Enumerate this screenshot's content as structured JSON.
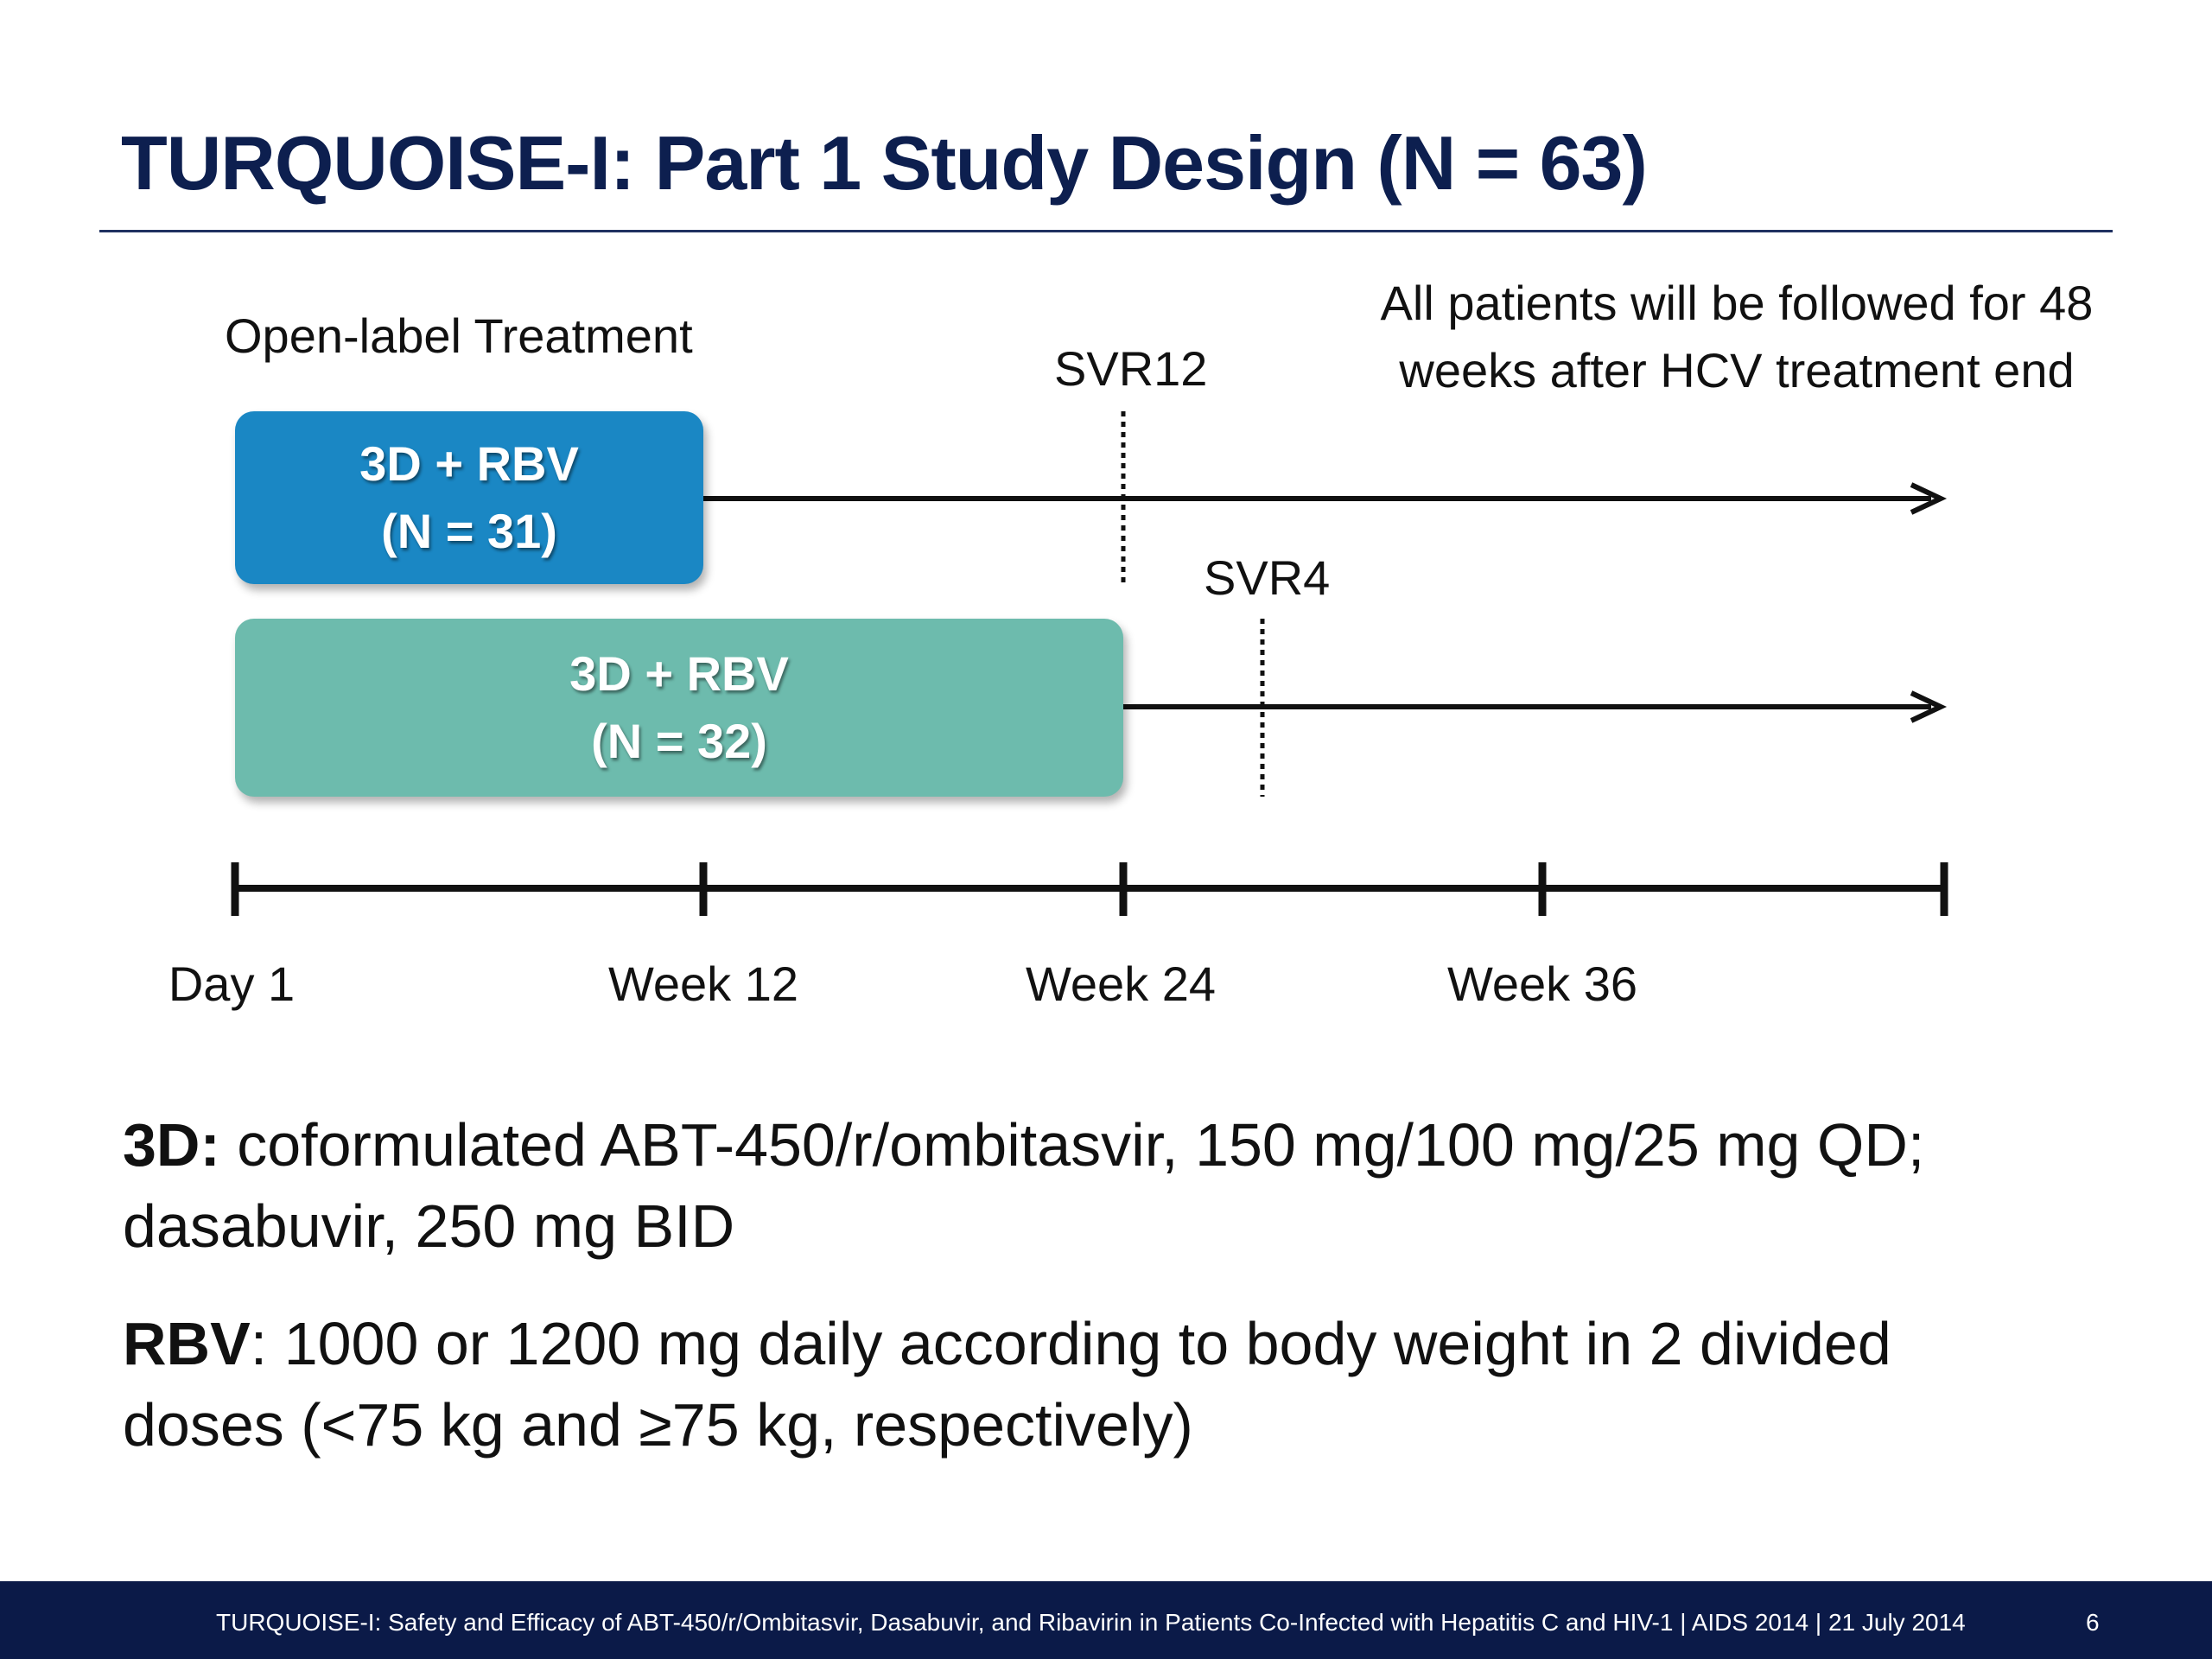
{
  "slide": {
    "title": "TURQUOISE-I: Part 1 Study Design (N = 63)"
  },
  "diagram": {
    "open_label": "Open-label Treatment",
    "followup_line1": "All patients will be followed for 48",
    "followup_line2": "weeks after HCV treatment end",
    "svr12_label": "SVR12",
    "svr4_label": "SVR4",
    "arms": [
      {
        "line1": "3D + RBV",
        "line2": "(N = 31)",
        "color": "#1a87c4"
      },
      {
        "line1": "3D + RBV",
        "line2": "(N = 32)",
        "color": "#6dbbad"
      }
    ],
    "timeline": {
      "ticks": [
        "Day 1",
        "Week 12",
        "Week 24",
        "Week 36",
        ""
      ]
    }
  },
  "notes": {
    "note1_label": "3D:",
    "note1_text": " coformulated ABT-450/r/ombitasvir, 150 mg/100 mg/25 mg QD;",
    "note1_line2": "dasabuvir, 250 mg BID",
    "note2_label": "RBV",
    "note2_text": ": 1000 or 1200 mg daily according to body weight in 2 divided",
    "note2_line2": "doses (<75 kg and ≥75 kg, respectively)"
  },
  "footer": {
    "citation": "TURQUOISE-I: Safety and Efficacy of ABT-450/r/Ombitasvir, Dasabuvir, and Ribavirin in Patients Co-Infected with Hepatitis C and HIV-1 | AIDS 2014 | 21 July 2014",
    "page_number": "6",
    "color": "#0b1a48"
  }
}
